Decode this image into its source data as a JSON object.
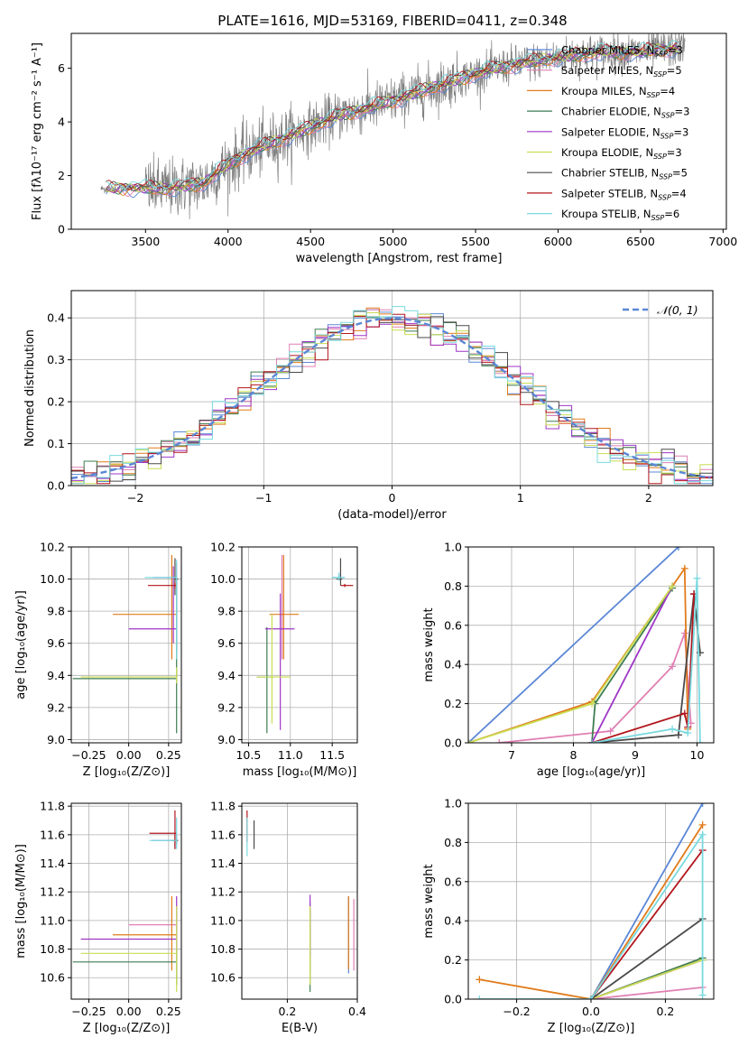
{
  "title": "PLATE=1616, MJD=53169, FIBERID=0411, z=0.348",
  "colors": {
    "chabrier_miles": "#5b87d6",
    "salpeter_miles": "#e07fb3",
    "kroupa_miles": "#e07b1a",
    "chabrier_elodie": "#3f7d52",
    "salpeter_elodie": "#9e35c7",
    "kroupa_elodie": "#c9dd52",
    "chabrier_stelib": "#4a4a4a",
    "salpeter_stelib": "#b2161d",
    "kroupa_stelib": "#78d9df",
    "observed": "#808080",
    "grid": "#b0b0b0",
    "gauss": "#5b87d6"
  },
  "chart_data": [
    {
      "id": "spectrum",
      "type": "line",
      "xlabel": "wavelength [Angstrom, rest frame]",
      "ylabel": "Flux [fλ10⁻¹⁷ erg cm⁻² s⁻¹ A⁻¹]",
      "xlim": [
        3050,
        7020
      ],
      "ylim": [
        0,
        7.3
      ],
      "xticks": [
        3500,
        4000,
        4500,
        5000,
        5500,
        6000,
        6500,
        7000
      ],
      "yticks": [
        0,
        2,
        4,
        6
      ],
      "grid": false,
      "legend_position": "top-right",
      "legend": [
        {
          "name": "Chabrier MILES, N",
          "sub": "SSP",
          "suffix": "=3",
          "color_key": "chabrier_miles"
        },
        {
          "name": "Salpeter MILES, N",
          "sub": "SSP",
          "suffix": "=5",
          "color_key": "salpeter_miles"
        },
        {
          "name": "Kroupa MILES, N",
          "sub": "SSP",
          "suffix": "=4",
          "color_key": "kroupa_miles"
        },
        {
          "name": "Chabrier ELODIE, N",
          "sub": "SSP",
          "suffix": "=3",
          "color_key": "chabrier_elodie"
        },
        {
          "name": "Salpeter ELODIE, N",
          "sub": "SSP",
          "suffix": "=3",
          "color_key": "salpeter_elodie"
        },
        {
          "name": "Kroupa ELODIE, N",
          "sub": "SSP",
          "suffix": "=3",
          "color_key": "kroupa_elodie"
        },
        {
          "name": "Chabrier STELIB, N",
          "sub": "SSP",
          "suffix": "=5",
          "color_key": "chabrier_stelib"
        },
        {
          "name": "Salpeter STELIB, N",
          "sub": "SSP",
          "suffix": "=4",
          "color_key": "salpeter_stelib"
        },
        {
          "name": "Kroupa STELIB, N",
          "sub": "SSP",
          "suffix": "=6",
          "color_key": "kroupa_stelib"
        }
      ],
      "continuum": [
        [
          3230,
          1.5
        ],
        [
          3400,
          1.55
        ],
        [
          3600,
          1.5
        ],
        [
          3850,
          1.7
        ],
        [
          3950,
          2.2
        ],
        [
          4100,
          2.8
        ],
        [
          4300,
          3.3
        ],
        [
          4500,
          3.8
        ],
        [
          4700,
          4.3
        ],
        [
          4900,
          4.6
        ],
        [
          5100,
          5.0
        ],
        [
          5300,
          5.4
        ],
        [
          5500,
          5.8
        ],
        [
          5700,
          6.1
        ],
        [
          5900,
          6.3
        ],
        [
          6100,
          6.5
        ],
        [
          6300,
          6.6
        ],
        [
          6500,
          6.6
        ],
        [
          6770,
          6.8
        ]
      ]
    },
    {
      "id": "residuals",
      "type": "histogram",
      "xlabel": "(data-model)/error",
      "ylabel": "Normed distribution",
      "xlim": [
        -2.5,
        2.5
      ],
      "ylim": [
        0,
        0.465
      ],
      "xticks": [
        -2,
        -1,
        0,
        1,
        2
      ],
      "yticks": [
        0.0,
        0.1,
        0.2,
        0.3,
        0.4
      ],
      "grid": true,
      "legend_position": "top-right",
      "legend": [
        {
          "name": "𝒩(0, 1)",
          "color_key": "gauss"
        }
      ],
      "bin_width": 0.1
    },
    {
      "id": "age_vs_Z",
      "type": "errorbar",
      "xlabel": "Z [log₁₀(Z/Z⊙)]",
      "ylabel": "age  [log₁₀(age/yr)]",
      "xlim": [
        -0.36,
        0.33
      ],
      "ylim": [
        8.98,
        10.2
      ],
      "xticks": [
        -0.25,
        0.0,
        0.25
      ],
      "yticks": [
        9.0,
        9.2,
        9.4,
        9.6,
        9.8,
        10.0,
        10.2
      ],
      "grid": true,
      "points": [
        {
          "k": "chabrier_miles",
          "x": 0.3,
          "y": 10.01,
          "x0": 0.15,
          "x1": 0.3,
          "y0": 9.99,
          "y1": 10.03
        },
        {
          "k": "salpeter_miles",
          "x": 0.3,
          "y": 10.01,
          "x0": 0.3,
          "x1": 0.3,
          "y0": 9.55,
          "y1": 10.1
        },
        {
          "k": "kroupa_miles",
          "x": 0.27,
          "y": 9.78,
          "x0": -0.1,
          "x1": 0.3,
          "y0": 9.5,
          "y1": 10.15
        },
        {
          "k": "chabrier_elodie",
          "x": 0.3,
          "y": 9.38,
          "x0": -0.35,
          "x1": 0.3,
          "y0": 9.04,
          "y1": 10.0
        },
        {
          "k": "salpeter_elodie",
          "x": 0.28,
          "y": 9.69,
          "x0": 0.0,
          "x1": 0.3,
          "y0": 9.6,
          "y1": 10.08
        },
        {
          "k": "kroupa_elodie",
          "x": 0.3,
          "y": 9.39,
          "x0": -0.3,
          "x1": 0.3,
          "y0": 9.35,
          "y1": 9.45
        },
        {
          "k": "chabrier_stelib",
          "x": 0.29,
          "y": 10.0,
          "x0": 0.29,
          "x1": 0.31,
          "y0": 9.9,
          "y1": 10.13
        },
        {
          "k": "salpeter_stelib",
          "x": 0.29,
          "y": 9.96,
          "x0": 0.12,
          "x1": 0.3,
          "y0": 9.94,
          "y1": 9.98
        },
        {
          "k": "kroupa_stelib",
          "x": 0.3,
          "y": 10.01,
          "x0": 0.1,
          "x1": 0.3,
          "y0": 9.5,
          "y1": 10.12
        }
      ]
    },
    {
      "id": "age_vs_mass",
      "type": "errorbar",
      "xlabel": "mass [log₁₀(M/M⊙)]",
      "ylabel": "",
      "xlim": [
        10.42,
        11.8
      ],
      "ylim": [
        8.98,
        10.2
      ],
      "xticks": [
        10.5,
        11.0,
        11.5
      ],
      "yticks": [
        9.0,
        9.2,
        9.4,
        9.6,
        9.8,
        10.0,
        10.2
      ],
      "grid": true,
      "points": [
        {
          "k": "chabrier_miles",
          "x": 11.6,
          "y": 10.01,
          "x0": 11.5,
          "x1": 11.65,
          "y0": 9.99,
          "y1": 10.03
        },
        {
          "k": "salpeter_miles",
          "x": 10.9,
          "y": 9.78,
          "x0": 10.88,
          "x1": 10.92,
          "y0": 9.5,
          "y1": 10.15
        },
        {
          "k": "kroupa_miles",
          "x": 10.92,
          "y": 9.78,
          "x0": 10.75,
          "x1": 11.1,
          "y0": 9.5,
          "y1": 10.15
        },
        {
          "k": "chabrier_elodie",
          "x": 10.72,
          "y": 9.39,
          "x0": 10.6,
          "x1": 10.8,
          "y0": 9.04,
          "y1": 9.7
        },
        {
          "k": "salpeter_elodie",
          "x": 10.88,
          "y": 9.69,
          "x0": 10.7,
          "x1": 11.05,
          "y0": 9.06,
          "y1": 9.91
        },
        {
          "k": "kroupa_elodie",
          "x": 10.78,
          "y": 9.39,
          "x0": 10.6,
          "x1": 11.0,
          "y0": 9.1,
          "y1": 9.78
        },
        {
          "k": "chabrier_stelib",
          "x": 11.6,
          "y": 10.0,
          "x0": 11.55,
          "x1": 11.62,
          "y0": 9.96,
          "y1": 10.13
        },
        {
          "k": "salpeter_stelib",
          "x": 11.65,
          "y": 9.96,
          "x0": 11.6,
          "x1": 11.75,
          "y0": 9.95,
          "y1": 9.97
        },
        {
          "k": "kroupa_stelib",
          "x": 11.58,
          "y": 10.01,
          "x0": 11.5,
          "x1": 11.65,
          "y0": 9.99,
          "y1": 10.04
        }
      ]
    },
    {
      "id": "massweight_vs_age",
      "type": "line",
      "xlabel": "age  [log₁₀(age/yr)]",
      "ylabel": "mass weight",
      "xlim": [
        6.3,
        10.27
      ],
      "ylim": [
        0,
        1.0
      ],
      "xticks": [
        7,
        8,
        9,
        10
      ],
      "yticks": [
        0.0,
        0.2,
        0.4,
        0.6,
        0.8,
        1.0
      ],
      "grid": true,
      "series": [
        {
          "k": "chabrier_miles",
          "x": [
            6.3,
            9.7
          ],
          "y": [
            0.0,
            1.0
          ]
        },
        {
          "k": "salpeter_miles",
          "x": [
            6.8,
            8.6,
            9.6,
            9.8,
            9.9
          ],
          "y": [
            0.0,
            0.06,
            0.39,
            0.56,
            0.1
          ]
        },
        {
          "k": "kroupa_miles",
          "x": [
            6.3,
            8.3,
            9.8,
            9.85
          ],
          "y": [
            0.0,
            0.21,
            0.89,
            0.07
          ]
        },
        {
          "k": "chabrier_elodie",
          "x": [
            8.3,
            8.35,
            9.6
          ],
          "y": [
            0.0,
            0.2,
            0.79
          ]
        },
        {
          "k": "salpeter_elodie",
          "x": [
            8.3,
            9.6
          ],
          "y": [
            0.0,
            0.8
          ]
        },
        {
          "k": "kroupa_elodie",
          "x": [
            6.3,
            8.3,
            9.6
          ],
          "y": [
            0.0,
            0.2,
            0.8
          ]
        },
        {
          "k": "chabrier_stelib",
          "x": [
            8.3,
            9.7,
            9.95,
            10.05
          ],
          "y": [
            0.0,
            0.04,
            0.76,
            0.46
          ]
        },
        {
          "k": "salpeter_stelib",
          "x": [
            8.3,
            9.8,
            9.85,
            9.95
          ],
          "y": [
            0.0,
            0.15,
            0.08,
            0.76
          ]
        },
        {
          "k": "kroupa_stelib",
          "x": [
            8.3,
            9.6,
            9.85,
            10.0,
            10.05
          ],
          "y": [
            0.0,
            0.07,
            0.05,
            0.84,
            0.0
          ]
        }
      ]
    },
    {
      "id": "mass_vs_Z",
      "type": "errorbar",
      "xlabel": "Z [log₁₀(Z/Z⊙)]",
      "ylabel": "mass [log₁₀(M/M⊙)]",
      "xlim": [
        -0.36,
        0.33
      ],
      "ylim": [
        10.45,
        11.82
      ],
      "xticks": [
        -0.25,
        0.0,
        0.25
      ],
      "yticks": [
        10.6,
        10.8,
        11.0,
        11.2,
        11.4,
        11.6,
        11.8
      ],
      "grid": true,
      "points": [
        {
          "k": "chabrier_miles",
          "x": 0.3,
          "y": 11.56,
          "x0": 0.15,
          "x1": 0.3,
          "y0": 11.53,
          "y1": 11.6
        },
        {
          "k": "salpeter_miles",
          "x": 0.3,
          "y": 10.97,
          "x0": 0.0,
          "x1": 0.3,
          "y0": 10.6,
          "y1": 11.1
        },
        {
          "k": "kroupa_miles",
          "x": 0.27,
          "y": 10.9,
          "x0": -0.1,
          "x1": 0.3,
          "y0": 10.65,
          "y1": 11.17
        },
        {
          "k": "chabrier_elodie",
          "x": 0.3,
          "y": 10.71,
          "x0": -0.35,
          "x1": 0.3,
          "y0": 10.55,
          "y1": 10.8
        },
        {
          "k": "salpeter_elodie",
          "x": 0.3,
          "y": 10.87,
          "x0": -0.3,
          "x1": 0.3,
          "y0": 10.8,
          "y1": 11.17
        },
        {
          "k": "kroupa_elodie",
          "x": 0.3,
          "y": 10.77,
          "x0": -0.3,
          "x1": 0.3,
          "y0": 10.5,
          "y1": 11.1
        },
        {
          "k": "chabrier_stelib",
          "x": 0.29,
          "y": 11.56,
          "x0": 0.27,
          "x1": 0.31,
          "y0": 11.5,
          "y1": 11.6
        },
        {
          "k": "salpeter_stelib",
          "x": 0.29,
          "y": 11.61,
          "x0": 0.13,
          "x1": 0.3,
          "y0": 11.5,
          "y1": 11.77
        },
        {
          "k": "kroupa_stelib",
          "x": 0.3,
          "y": 11.56,
          "x0": 0.13,
          "x1": 0.3,
          "y0": 11.5,
          "y1": 11.72
        }
      ]
    },
    {
      "id": "mass_vs_ebv",
      "type": "errorbar",
      "xlabel": "E(B-V)",
      "ylabel": "",
      "xlim": [
        0.07,
        0.4
      ],
      "ylim": [
        10.45,
        11.82
      ],
      "xticks": [
        0.2,
        0.4
      ],
      "yticks": [
        10.6,
        10.8,
        11.0,
        11.2,
        11.4,
        11.6,
        11.8
      ],
      "grid": true,
      "points": [
        {
          "k": "chabrier_miles",
          "x": 0.375,
          "y": 10.9,
          "x0": 0.375,
          "x1": 0.375,
          "y0": 10.63,
          "y1": 11.17
        },
        {
          "k": "salpeter_miles",
          "x": 0.265,
          "y": 10.9,
          "x0": 0.265,
          "x1": 0.265,
          "y0": 10.65,
          "y1": 11.13
        },
        {
          "k": "kroupa_miles",
          "x": 0.375,
          "y": 10.9,
          "x0": 0.375,
          "x1": 0.375,
          "y0": 10.66,
          "y1": 11.17
        },
        {
          "k": "chabrier_elodie",
          "x": 0.265,
          "y": 10.82,
          "x0": 0.265,
          "x1": 0.265,
          "y0": 10.5,
          "y1": 11.08
        },
        {
          "k": "salpeter_elodie",
          "x": 0.265,
          "y": 10.92,
          "x0": 0.265,
          "x1": 0.265,
          "y0": 10.75,
          "y1": 11.18
        },
        {
          "k": "kroupa_elodie",
          "x": 0.265,
          "y": 10.82,
          "x0": 0.265,
          "x1": 0.265,
          "y0": 10.55,
          "y1": 11.1
        },
        {
          "k": "chabrier_stelib",
          "x": 0.105,
          "y": 11.58,
          "x0": 0.105,
          "x1": 0.105,
          "y0": 11.5,
          "y1": 11.7
        },
        {
          "k": "salpeter_stelib",
          "x": 0.085,
          "y": 11.65,
          "x0": 0.085,
          "x1": 0.085,
          "y0": 11.55,
          "y1": 11.77
        },
        {
          "k": "kroupa_stelib",
          "x": 0.085,
          "y": 11.58,
          "x0": 0.085,
          "x1": 0.085,
          "y0": 11.45,
          "y1": 11.72
        },
        {
          "k": "salpeter_miles",
          "x": 0.39,
          "y": 10.9,
          "x0": 0.39,
          "x1": 0.39,
          "y0": 10.65,
          "y1": 11.15
        }
      ]
    },
    {
      "id": "massweight_vs_Z",
      "type": "line",
      "xlabel": "Z [log₁₀(Z/Z⊙)]",
      "ylabel": "mass weight",
      "xlim": [
        -0.33,
        0.33
      ],
      "ylim": [
        0,
        1.0
      ],
      "xticks": [
        -0.2,
        0.0,
        0.2
      ],
      "yticks": [
        0.0,
        0.2,
        0.4,
        0.6,
        0.8,
        1.0
      ],
      "grid": true,
      "series": [
        {
          "k": "chabrier_miles",
          "x": [
            0.0,
            0.3
          ],
          "y": [
            0.0,
            1.0
          ]
        },
        {
          "k": "salpeter_miles",
          "x": [
            0.0,
            0.3
          ],
          "y": [
            0.0,
            0.06
          ]
        },
        {
          "k": "kroupa_miles",
          "x": [
            -0.3,
            0.0,
            0.3
          ],
          "y": [
            0.1,
            0.0,
            0.89
          ]
        },
        {
          "k": "chabrier_elodie",
          "x": [
            0.0,
            0.3
          ],
          "y": [
            0.0,
            0.21
          ]
        },
        {
          "k": "salpeter_elodie",
          "x": [
            0.0,
            0.3
          ],
          "y": [
            0.0,
            0.2
          ]
        },
        {
          "k": "kroupa_elodie",
          "x": [
            0.0,
            0.3
          ],
          "y": [
            0.0,
            0.2
          ]
        },
        {
          "k": "chabrier_stelib",
          "x": [
            0.0,
            0.3
          ],
          "y": [
            0.0,
            0.41
          ]
        },
        {
          "k": "salpeter_stelib",
          "x": [
            0.0,
            0.3
          ],
          "y": [
            0.0,
            0.76
          ]
        },
        {
          "k": "kroupa_stelib",
          "x": [
            -0.3,
            0.0,
            0.3,
            0.3
          ],
          "y": [
            0.0,
            0.0,
            0.84,
            0.02
          ]
        }
      ]
    }
  ]
}
